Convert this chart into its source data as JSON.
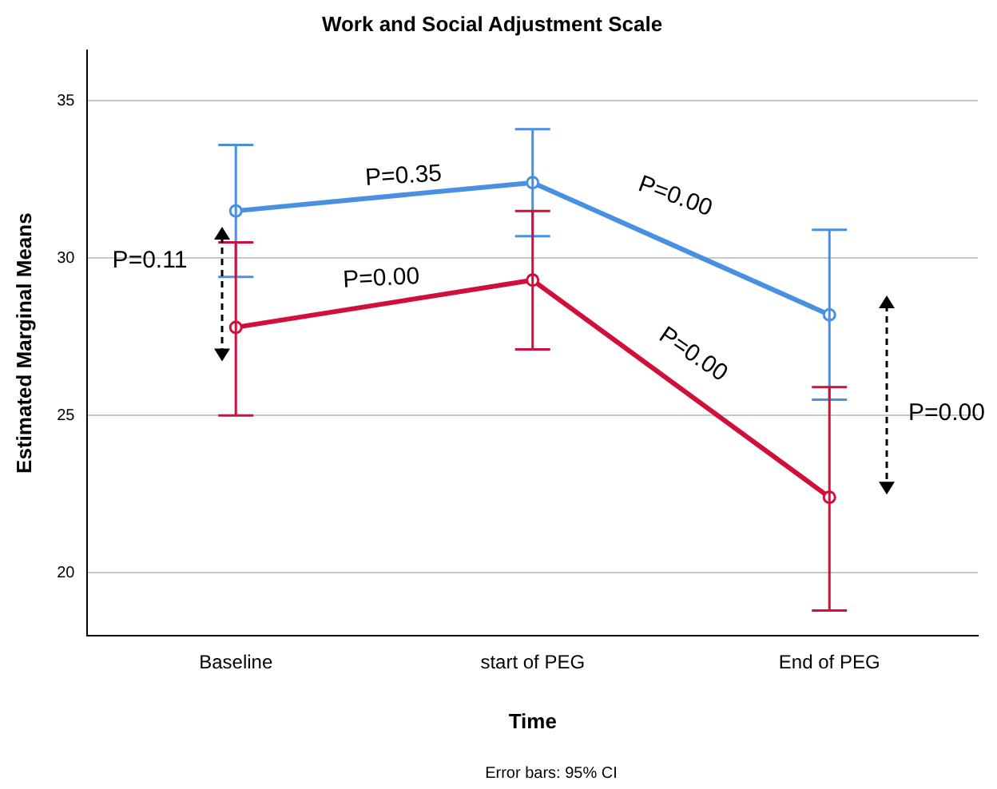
{
  "chart_data": {
    "type": "line",
    "title": "Work and Social Adjustment Scale",
    "xlabel": "Time",
    "ylabel": "Estimated Marginal Means",
    "categories": [
      "Baseline",
      "start of PEG",
      "End of PEG"
    ],
    "series": [
      {
        "color": "#4a90e2",
        "values": [
          31.5,
          32.4,
          28.2
        ],
        "errors": [
          [
            29.4,
            33.6
          ],
          [
            30.7,
            34.1
          ],
          [
            25.5,
            30.9
          ]
        ]
      },
      {
        "color": "#d0103a",
        "values": [
          27.8,
          29.3,
          22.4
        ],
        "errors": [
          [
            25.0,
            30.5
          ],
          [
            27.1,
            31.5
          ],
          [
            18.8,
            25.9
          ]
        ]
      }
    ],
    "ylim": [
      18,
      36.6
    ],
    "yticks": [
      20,
      25,
      30,
      35
    ],
    "grid": "y",
    "legend": false,
    "marker": "circle",
    "line_style": "solid",
    "annotations": [
      "P=0.11",
      "P=0.35",
      "P=0.00",
      "P=0.00",
      "P=0.00",
      "P=0.00",
      "Error bars: 95% CI"
    ]
  }
}
